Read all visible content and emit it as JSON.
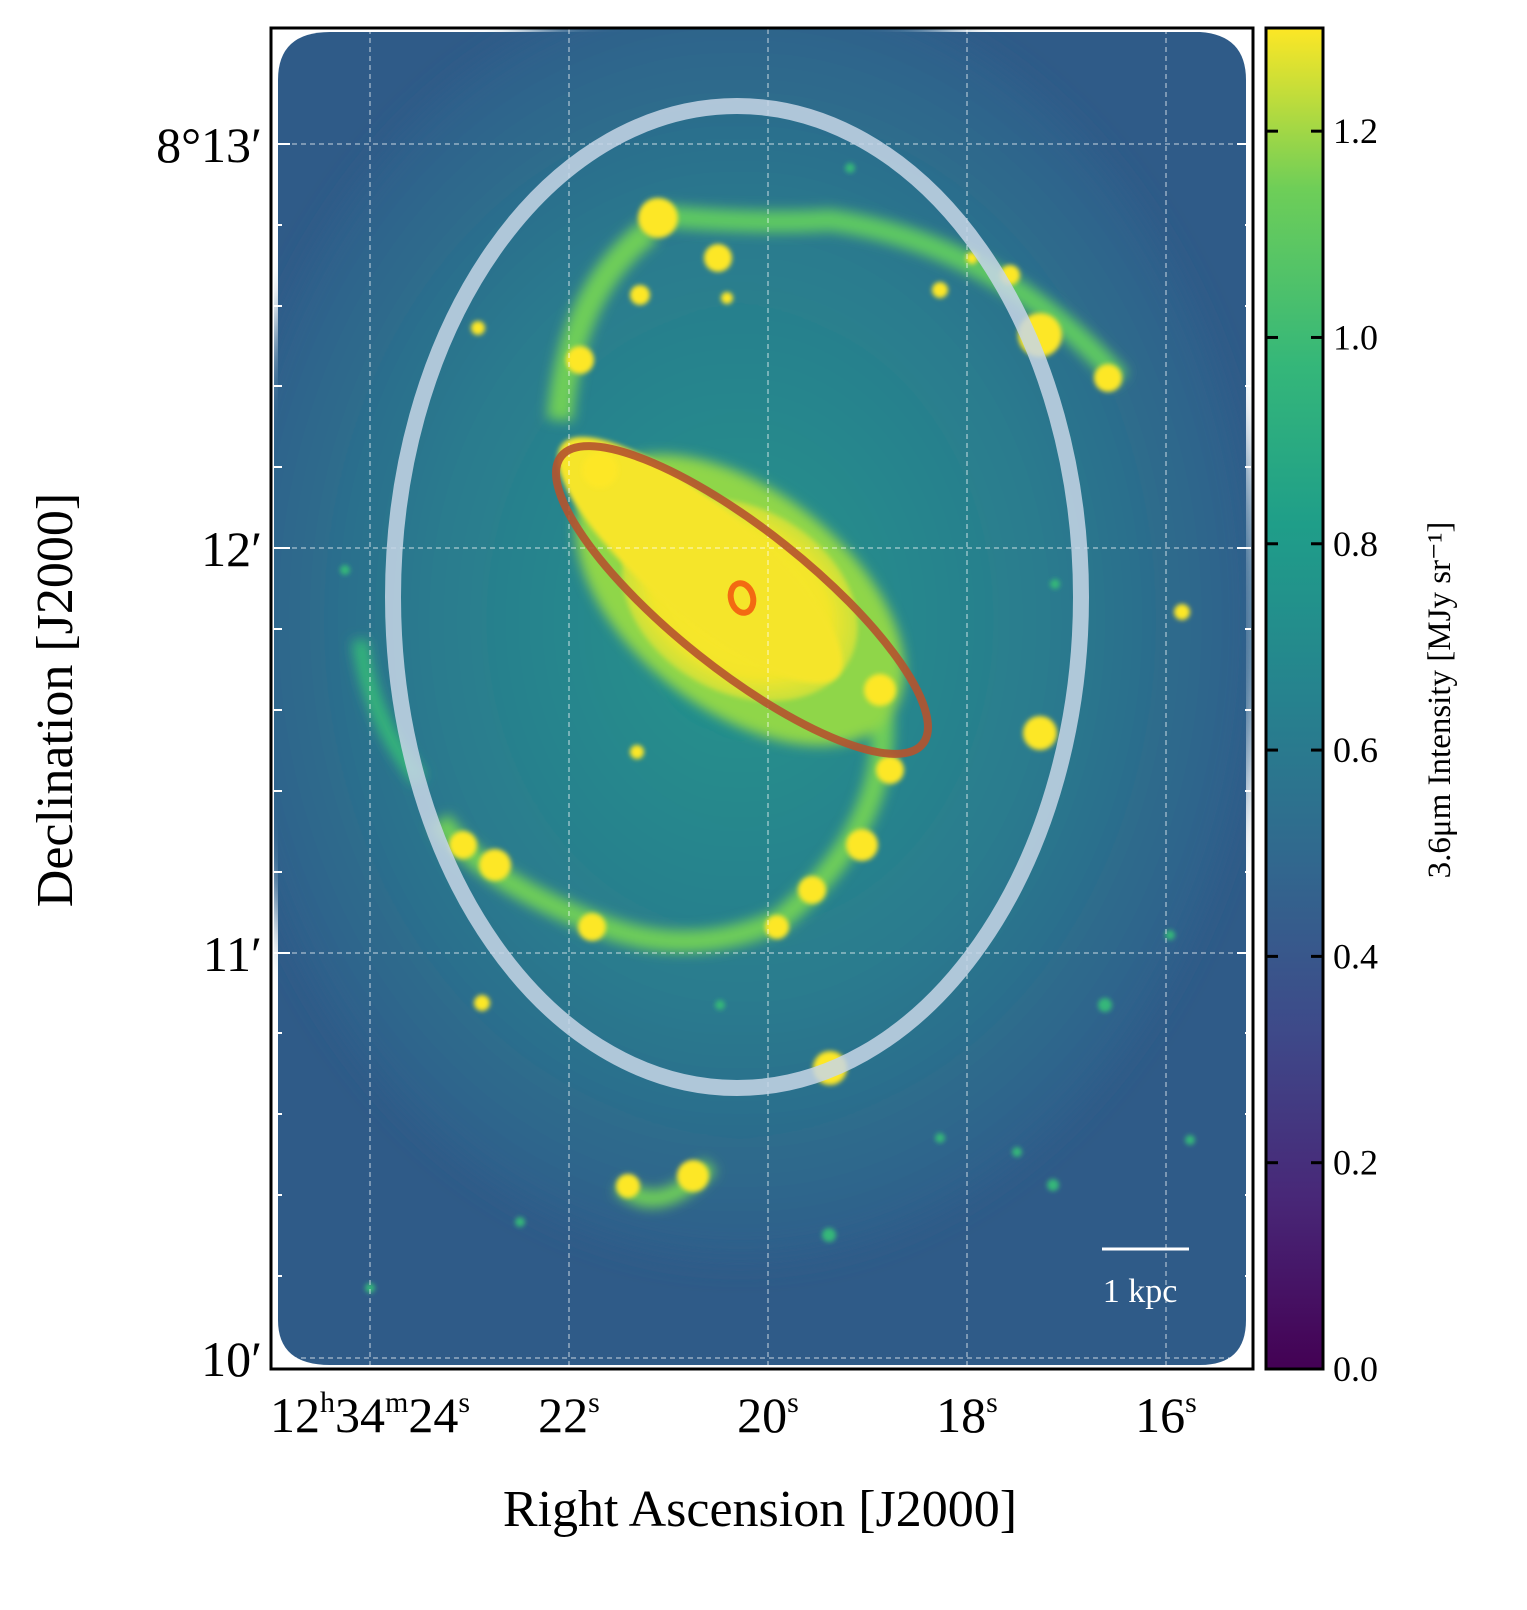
{
  "figure": {
    "xlabel": "Right Ascension [J2000]",
    "ylabel": "Declination [J2000]",
    "colorbar_label": "3.6μm Intensity [MJy sr⁻¹]",
    "scalebar_label": "1 kpc"
  },
  "axes": {
    "ra_ticks": [
      {
        "main": "12",
        "sup1": "h",
        "mid": "34",
        "sup2": "m",
        "end": "24",
        "sup3": "s"
      },
      {
        "main": "22",
        "sup": "s"
      },
      {
        "main": "20",
        "sup": "s"
      },
      {
        "main": "18",
        "sup": "s"
      },
      {
        "main": "16",
        "sup": "s"
      }
    ],
    "dec_ticks": [
      "8°13′",
      "12′",
      "11′",
      "10′"
    ]
  },
  "colorbar": {
    "range": [
      0.0,
      1.3
    ],
    "ticks": [
      "0.0",
      "0.2",
      "0.4",
      "0.6",
      "0.8",
      "1.0",
      "1.2"
    ],
    "colormap": "viridis"
  },
  "overlays": {
    "outer_ellipse_color": "#c7d6e6",
    "bar_ellipse_color": "#b5532e",
    "nucleus_color": "#f36a12"
  },
  "colors": {
    "background_low": "#2b5f8a",
    "disk": "#20908d",
    "arm": "#5ec962",
    "bright": "#fde725",
    "grid": "#ffffff"
  }
}
